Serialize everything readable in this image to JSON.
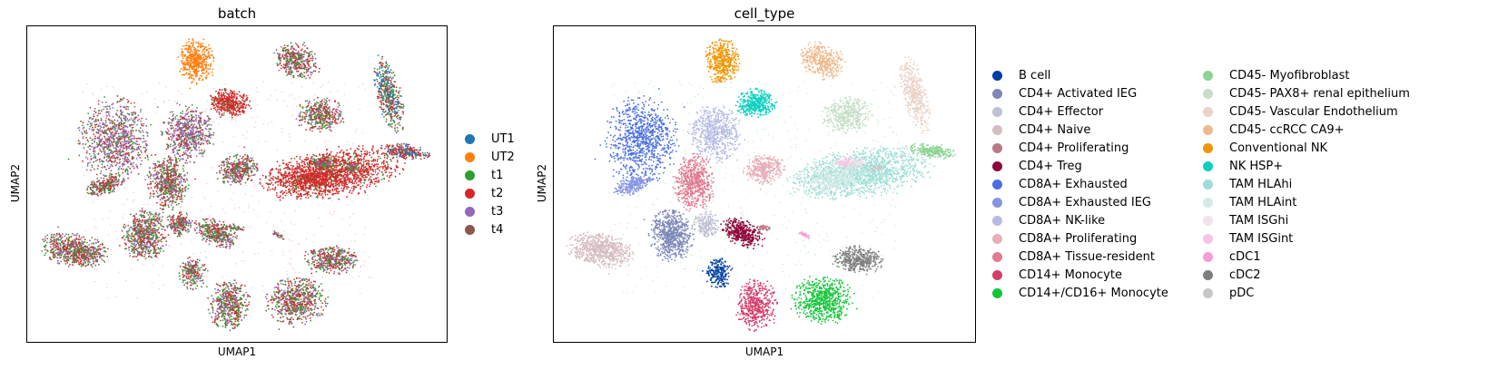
{
  "chart_data": [
    {
      "type": "scatter",
      "title": "batch",
      "xlabel": "UMAP1",
      "ylabel": "UMAP2",
      "grid": false,
      "ticks": "none",
      "legend_placement": "right",
      "legend": [
        {
          "label": "UT1",
          "color": "#1f77b4"
        },
        {
          "label": "UT2",
          "color": "#ff7f0e"
        },
        {
          "label": "t1",
          "color": "#2ca02c"
        },
        {
          "label": "t2",
          "color": "#d62728"
        },
        {
          "label": "t3",
          "color": "#9467bd"
        },
        {
          "label": "t4",
          "color": "#8c564b"
        }
      ]
    },
    {
      "type": "scatter",
      "title": "cell_type",
      "xlabel": "UMAP1",
      "ylabel": "UMAP2",
      "grid": false,
      "ticks": "none",
      "legend_placement": "right",
      "legend": [
        {
          "label": "B cell",
          "color": "#023fa5"
        },
        {
          "label": "CD4+ Activated IEG",
          "color": "#7d87b9"
        },
        {
          "label": "CD4+ Effector",
          "color": "#bec1d4"
        },
        {
          "label": "CD4+ Naive",
          "color": "#d6bcc0"
        },
        {
          "label": "CD4+ Proliferating",
          "color": "#bb7784"
        },
        {
          "label": "CD4+ Treg",
          "color": "#8e063b"
        },
        {
          "label": "CD8A+ Exhausted",
          "color": "#4a6fe3"
        },
        {
          "label": "CD8A+ Exhausted IEG",
          "color": "#8595e1"
        },
        {
          "label": "CD8A+ NK-like",
          "color": "#b5bbe3"
        },
        {
          "label": "CD8A+ Proliferating",
          "color": "#e6afb9"
        },
        {
          "label": "CD8A+ Tissue-resident",
          "color": "#e07b91"
        },
        {
          "label": "CD14+ Monocyte",
          "color": "#d33f6a"
        },
        {
          "label": "CD14+/CD16+ Monocyte",
          "color": "#11c638"
        },
        {
          "label": "CD45- Myofibroblast",
          "color": "#8dd593"
        },
        {
          "label": "CD45- PAX8+ renal epithelium",
          "color": "#c6dec7"
        },
        {
          "label": "CD45- Vascular Endothelium",
          "color": "#ead3c6"
        },
        {
          "label": "CD45- ccRCC CA9+",
          "color": "#f0b98d"
        },
        {
          "label": "Conventional NK",
          "color": "#ef9708"
        },
        {
          "label": "NK HSP+",
          "color": "#0fcfc0"
        },
        {
          "label": "TAM HLAhi",
          "color": "#9cded6"
        },
        {
          "label": "TAM HLAint",
          "color": "#d5eae7"
        },
        {
          "label": "TAM ISGhi",
          "color": "#f3e1eb"
        },
        {
          "label": "TAM ISGint",
          "color": "#f6c4e1"
        },
        {
          "label": "cDC1",
          "color": "#f79cd4"
        },
        {
          "label": "cDC2",
          "color": "#7f7f7f"
        },
        {
          "label": "pDC",
          "color": "#c7c7c7"
        }
      ]
    }
  ]
}
